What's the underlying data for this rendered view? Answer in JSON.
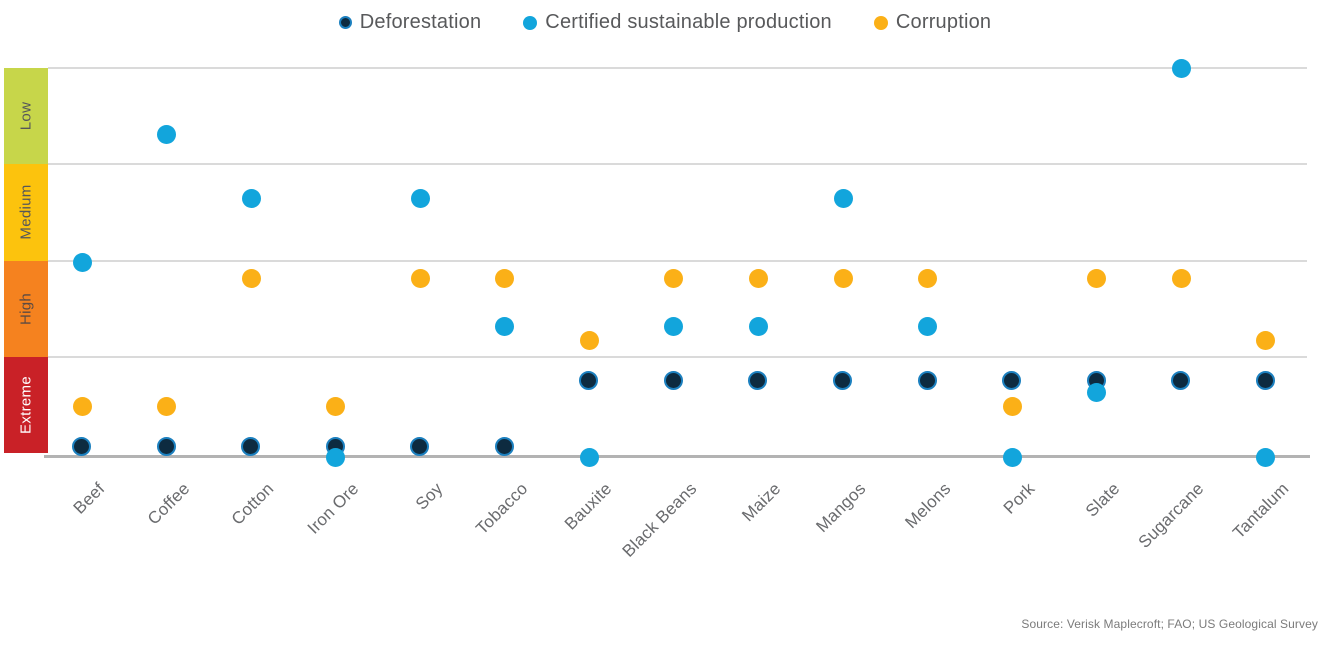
{
  "source": "Source: Verisk Maplecroft; FAO; US Geological Survey",
  "colors": {
    "deforestation_fill": "#0D2B40",
    "deforestation_ring": "#1C80BF",
    "certified_blue": "#12A5DC",
    "corruption_orange": "#FBB017",
    "gridline": "#DADADA",
    "axis_line": "#B3B3B3",
    "legend_text": "#58595B",
    "xlabel_text": "#6A6B6E"
  },
  "chart_data": {
    "type": "scatter",
    "title": "",
    "categories": [
      "Beef",
      "Coffee",
      "Cotton",
      "Iron Ore",
      "Soy",
      "Tobacco",
      "Bauxite",
      "Black Beans",
      "Maize",
      "Mangos",
      "Melons",
      "Pork",
      "Slate",
      "Sugarcane",
      "Tantalum"
    ],
    "series": [
      {
        "name": "Deforestation",
        "color": "#0D2B40",
        "ring": "#1C80BF",
        "values": [
          0.25,
          0.25,
          0.25,
          0.25,
          0.25,
          0.25,
          1.95,
          1.95,
          1.95,
          1.95,
          1.95,
          1.95,
          1.95,
          1.95,
          1.95
        ]
      },
      {
        "name": "Certified sustainable production",
        "color": "#12A5DC",
        "values": [
          5.0,
          8.3,
          6.65,
          0,
          6.65,
          3.35,
          0,
          3.35,
          3.35,
          6.65,
          3.35,
          0,
          1.65,
          10,
          0
        ]
      },
      {
        "name": "Corruption",
        "color": "#FBB017",
        "values": [
          1.3,
          1.3,
          4.6,
          1.3,
          4.6,
          4.6,
          3.0,
          4.6,
          4.6,
          4.6,
          4.6,
          1.3,
          4.6,
          4.6,
          3.0
        ]
      }
    ],
    "ylim": [
      0,
      10
    ],
    "y_axis_visible": false,
    "grid": "horizontal",
    "legend_position": "top-center",
    "risk_bands": [
      {
        "label": "Low",
        "range": [
          7.5,
          10
        ],
        "color": "#C7D64A",
        "text_color": "#55565A"
      },
      {
        "label": "Medium",
        "range": [
          5,
          7.5
        ],
        "color": "#FCC30D",
        "text_color": "#55565A"
      },
      {
        "label": "High",
        "range": [
          2.5,
          5
        ],
        "color": "#F5821F",
        "text_color": "#5C4A42"
      },
      {
        "label": "Extreme",
        "range": [
          0,
          2.5
        ],
        "color": "#C92127",
        "text_color": "#FFFFFF"
      }
    ],
    "source": "Source: Verisk Maplecroft; FAO; US Geological Survey"
  }
}
